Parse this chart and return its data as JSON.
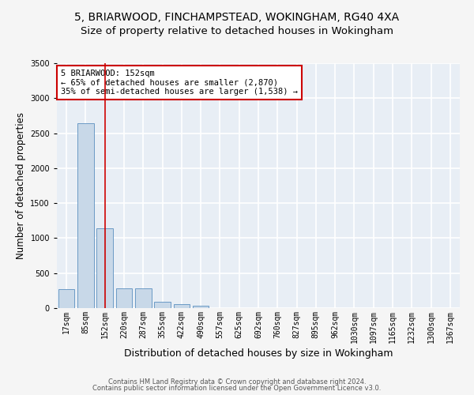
{
  "title_line1": "5, BRIARWOOD, FINCHAMPSTEAD, WOKINGHAM, RG40 4XA",
  "title_line2": "Size of property relative to detached houses in Wokingham",
  "xlabel": "Distribution of detached houses by size in Wokingham",
  "ylabel": "Number of detached properties",
  "footer_line1": "Contains HM Land Registry data © Crown copyright and database right 2024.",
  "footer_line2": "Contains public sector information licensed under the Open Government Licence v3.0.",
  "bar_labels": [
    "17sqm",
    "85sqm",
    "152sqm",
    "220sqm",
    "287sqm",
    "355sqm",
    "422sqm",
    "490sqm",
    "557sqm",
    "625sqm",
    "692sqm",
    "760sqm",
    "827sqm",
    "895sqm",
    "962sqm",
    "1030sqm",
    "1097sqm",
    "1165sqm",
    "1232sqm",
    "1300sqm",
    "1367sqm"
  ],
  "bar_values": [
    275,
    2640,
    1140,
    280,
    280,
    95,
    55,
    35,
    0,
    0,
    0,
    0,
    0,
    0,
    0,
    0,
    0,
    0,
    0,
    0,
    0
  ],
  "bar_color": "#c8d8e8",
  "bar_edge_color": "#5a8fbf",
  "highlight_bar_index": 2,
  "highlight_line_color": "#cc0000",
  "annotation_text": "5 BRIARWOOD: 152sqm\n← 65% of detached houses are smaller (2,870)\n35% of semi-detached houses are larger (1,538) →",
  "annotation_box_color": "#ffffff",
  "annotation_box_edge_color": "#cc0000",
  "ylim": [
    0,
    3500
  ],
  "background_color": "#f5f5f5",
  "plot_background_color": "#e8eef5",
  "grid_color": "#ffffff",
  "title_fontsize": 10,
  "subtitle_fontsize": 9.5,
  "tick_fontsize": 7,
  "ylabel_fontsize": 8.5,
  "xlabel_fontsize": 9
}
